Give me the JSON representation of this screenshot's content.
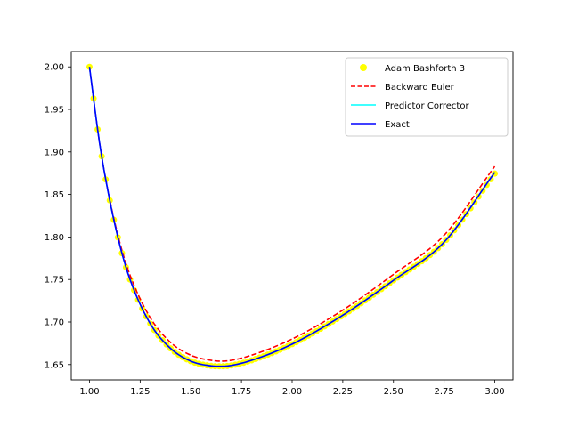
{
  "chart_data": {
    "type": "line",
    "title": "",
    "xlabel": "",
    "ylabel": "",
    "xlim": [
      0.91,
      3.09
    ],
    "ylim": [
      1.632,
      2.018
    ],
    "xticks": [
      1.0,
      1.25,
      1.5,
      1.75,
      2.0,
      2.25,
      2.5,
      2.75,
      3.0
    ],
    "xtick_labels": [
      "1.00",
      "1.25",
      "1.50",
      "1.75",
      "2.00",
      "2.25",
      "2.50",
      "2.75",
      "3.00"
    ],
    "yticks": [
      1.65,
      1.7,
      1.75,
      1.8,
      1.85,
      1.9,
      1.95,
      2.0
    ],
    "ytick_labels": [
      "1.65",
      "1.70",
      "1.75",
      "1.80",
      "1.85",
      "1.90",
      "1.95",
      "2.00"
    ],
    "grid": false,
    "legend_position": "top-right",
    "x": [
      1.0,
      1.05,
      1.1,
      1.15,
      1.2,
      1.3,
      1.4,
      1.5,
      1.6,
      1.65,
      1.7,
      1.8,
      2.0,
      2.25,
      2.5,
      2.75,
      3.0
    ],
    "series": [
      {
        "name": "Adam Bashforth 3",
        "style": "markers",
        "color": "#ffff00",
        "values": [
          2.0,
          1.91,
          1.843,
          1.79,
          1.75,
          1.698,
          1.669,
          1.654,
          1.6485,
          1.648,
          1.649,
          1.655,
          1.674,
          1.708,
          1.749,
          1.794,
          1.8745
        ]
      },
      {
        "name": "Backward Euler",
        "style": "dashed",
        "color": "#ff0000",
        "values": [
          2.0,
          1.91,
          1.844,
          1.793,
          1.755,
          1.705,
          1.676,
          1.661,
          1.655,
          1.654,
          1.655,
          1.661,
          1.68,
          1.714,
          1.756,
          1.802,
          1.883
        ]
      },
      {
        "name": "Predictor Corrector",
        "style": "solid",
        "color": "#00ffff",
        "values": [
          2.0,
          1.91,
          1.843,
          1.79,
          1.75,
          1.698,
          1.669,
          1.654,
          1.6485,
          1.648,
          1.649,
          1.655,
          1.674,
          1.708,
          1.749,
          1.794,
          1.876
        ]
      },
      {
        "name": "Exact",
        "style": "solid",
        "color": "#0000ff",
        "values": [
          2.0,
          1.91,
          1.843,
          1.79,
          1.75,
          1.698,
          1.669,
          1.654,
          1.6485,
          1.648,
          1.649,
          1.655,
          1.674,
          1.708,
          1.749,
          1.794,
          1.876
        ]
      }
    ]
  }
}
